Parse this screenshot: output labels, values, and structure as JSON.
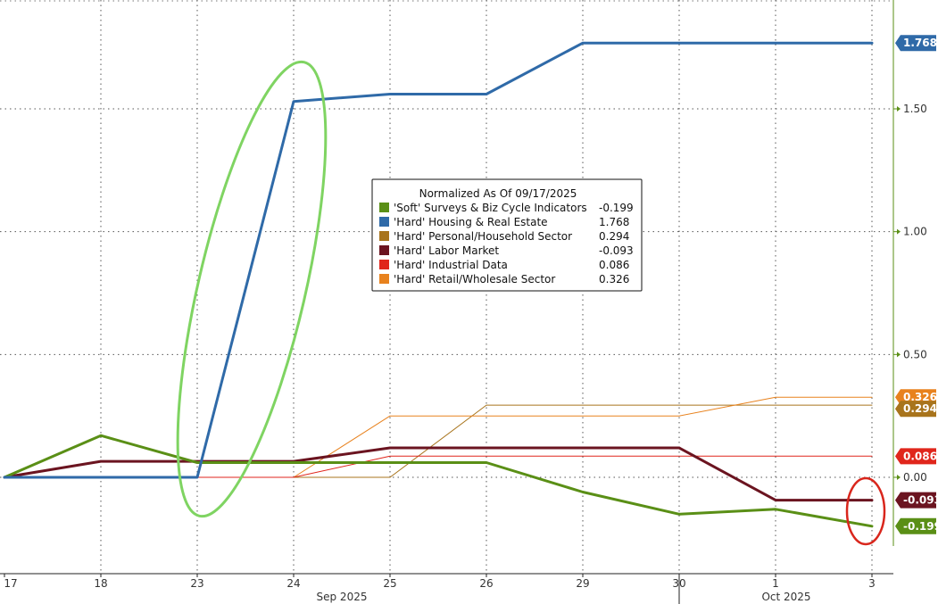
{
  "chart_data": {
    "type": "line",
    "title": "",
    "xlabel": "",
    "ylabel": "",
    "categories": [
      "17",
      "18",
      "23",
      "24",
      "25",
      "26",
      "29",
      "30",
      "1",
      "3"
    ],
    "month_labels": [
      "Sep 2025",
      "Oct 2025"
    ],
    "y_ticks": [
      "1.50",
      "1.00",
      "0.50",
      "0.00"
    ],
    "ylim": [
      -0.28,
      1.95
    ],
    "grid": true,
    "legend": {
      "title": "Normalized As Of 09/17/2025",
      "placement": "top-center"
    },
    "series": [
      {
        "name": "'Soft' Surveys & Biz Cycle Indicators",
        "color": "#5a8f16",
        "last": "-0.199",
        "values": [
          0,
          0.17,
          0.06,
          0.06,
          0.06,
          0.06,
          -0.06,
          -0.15,
          -0.13,
          -0.199
        ]
      },
      {
        "name": "'Hard' Housing & Real Estate",
        "color": "#2f6aa8",
        "last": "1.768",
        "values": [
          0,
          0,
          0,
          1.53,
          1.56,
          1.56,
          1.768,
          1.768,
          1.768,
          1.768
        ]
      },
      {
        "name": "'Hard' Personal/Household Sector",
        "color": "#a8741c",
        "last": "0.294",
        "values": [
          0,
          0,
          0,
          0,
          0,
          0.294,
          0.294,
          0.294,
          0.294,
          0.294
        ]
      },
      {
        "name": "'Hard' Labor Market",
        "color": "#6b1420",
        "last": "-0.093",
        "values": [
          0,
          0.065,
          0.065,
          0.065,
          0.12,
          0.12,
          0.12,
          0.12,
          -0.093,
          -0.093
        ]
      },
      {
        "name": "'Hard' Industrial Data",
        "color": "#e0261c",
        "last": "0.086",
        "values": [
          0,
          0,
          0,
          0,
          0.086,
          0.086,
          0.086,
          0.086,
          0.086,
          0.086
        ]
      },
      {
        "name": "'Hard' Retail/Wholesale Sector",
        "color": "#e8821e",
        "last": "0.326",
        "values": [
          0,
          0,
          0,
          0,
          0.25,
          0.25,
          0.25,
          0.25,
          0.326,
          0.326
        ]
      }
    ]
  }
}
